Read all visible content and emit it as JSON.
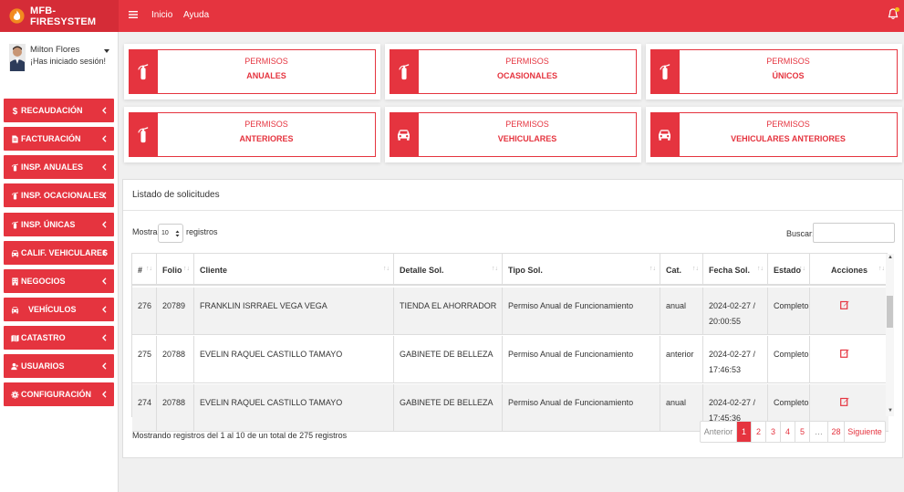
{
  "app": {
    "title": "MFB-FIRESYSTEM",
    "accent": "#e5343f"
  },
  "topnav": {
    "items": [
      "Inicio",
      "Ayuda"
    ]
  },
  "user": {
    "name": "Milton Flores",
    "status": "¡Has iniciado sesión!"
  },
  "sidebar": {
    "items": [
      {
        "label": "RECAUDACIÓN",
        "icon": "dollar-icon"
      },
      {
        "label": "FACTURACIÓN",
        "icon": "file-icon"
      },
      {
        "label": "INSP. ANUALES",
        "icon": "fire-extinguisher-icon"
      },
      {
        "label": "INSP. OCACIONALES",
        "icon": "fire-extinguisher-icon"
      },
      {
        "label": "INSP. ÚNICAS",
        "icon": "fire-extinguisher-icon"
      },
      {
        "label": "CALIF. VEHICULARES",
        "icon": "car-icon"
      },
      {
        "label": "NEGOCIOS",
        "icon": "building-icon"
      },
      {
        "label": "VEHÍCULOS",
        "icon": "car-icon"
      },
      {
        "label": "CATASTRO",
        "icon": "map-icon"
      },
      {
        "label": "USUARIOS",
        "icon": "users-icon"
      },
      {
        "label": "CONFIGURACIÓN",
        "icon": "gear-icon"
      }
    ]
  },
  "cards": [
    {
      "line1": "PERMISOS",
      "line2": "ANUALES",
      "icon": "fire-extinguisher-icon"
    },
    {
      "line1": "PERMISOS",
      "line2": "OCASIONALES",
      "icon": "fire-extinguisher-icon"
    },
    {
      "line1": "PERMISOS",
      "line2": "ÚNICOS",
      "icon": "fire-extinguisher-icon"
    },
    {
      "line1": "PERMISOS",
      "line2": "ANTERIORES",
      "icon": "fire-extinguisher-icon"
    },
    {
      "line1": "PERMISOS",
      "line2": "VEHICULARES",
      "icon": "car-icon"
    },
    {
      "line1": "PERMISOS",
      "line2": "VEHICULARES ANTERIORES",
      "icon": "car-icon"
    }
  ],
  "panel": {
    "title": "Listado de solicitudes",
    "show_label": "Mostrar",
    "show_value": "10",
    "records_label": "registros",
    "search_label": "Buscar:",
    "search_value": "",
    "info": "Mostrando registros del 1 al 10 de un total de 275 registros"
  },
  "table": {
    "headers": [
      "#",
      "Folio",
      "Cliente",
      "Detalle Sol.",
      "Tipo Sol.",
      "Cat.",
      "Fecha Sol.",
      "Estado",
      "Acciones"
    ],
    "rows": [
      [
        "276",
        "20789",
        "FRANKLIN ISRRAEL VEGA VEGA",
        "TIENDA EL AHORRADOR",
        "Permiso Anual de Funcionamiento",
        "anual",
        "2024-02-27 / 20:00:55",
        "Completo"
      ],
      [
        "275",
        "20788",
        "EVELIN RAQUEL CASTILLO TAMAYO",
        "GABINETE DE BELLEZA",
        "Permiso Anual de Funcionamiento",
        "anterior",
        "2024-02-27 / 17:46:53",
        "Completo"
      ],
      [
        "274",
        "20788",
        "EVELIN RAQUEL CASTILLO TAMAYO",
        "GABINETE DE BELLEZA",
        "Permiso Anual de Funcionamiento",
        "anual",
        "2024-02-27 / 17:45:36",
        "Completo"
      ]
    ]
  },
  "pagination": {
    "prev": "Anterior",
    "pages": [
      "1",
      "2",
      "3",
      "4",
      "5",
      "…",
      "28"
    ],
    "next": "Siguiente",
    "current": "1"
  }
}
